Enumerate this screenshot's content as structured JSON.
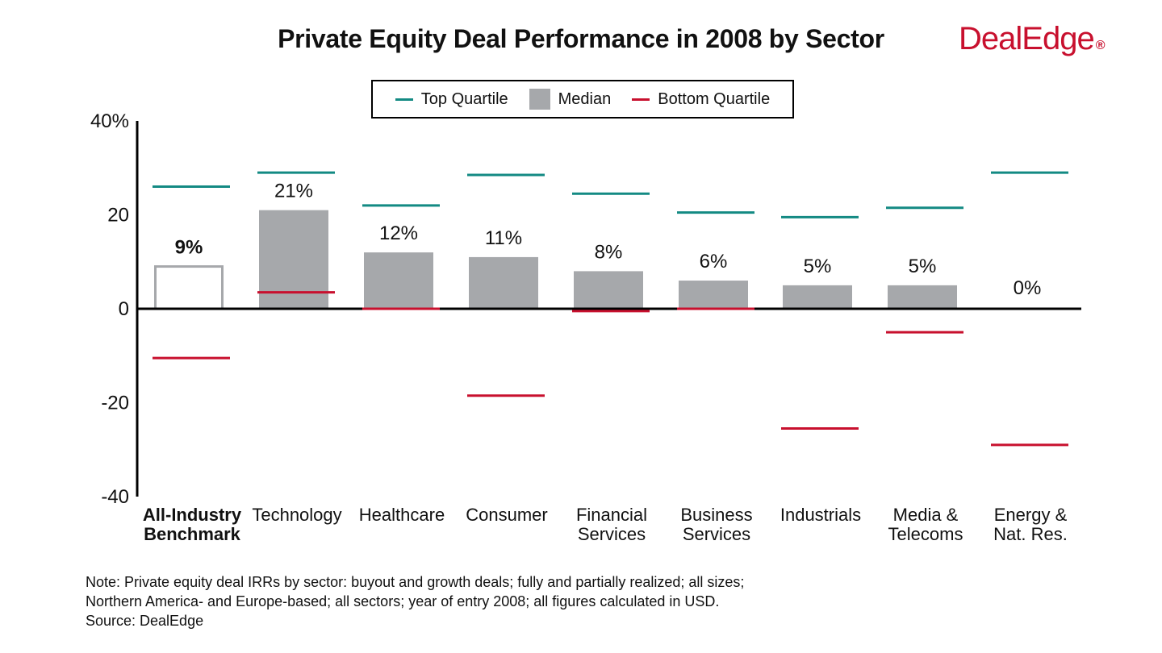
{
  "logo": {
    "text": "DealEdge",
    "mark": "®",
    "color": "#c8102e"
  },
  "colors": {
    "median": "#a6a8ab",
    "top": "#138a83",
    "bottom": "#c8102e",
    "benchmark_outline": "#a6a8ab"
  },
  "legend": {
    "top_label": "Top Quartile",
    "median_label": "Median",
    "bottom_label": "Bottom Quartile"
  },
  "note": {
    "line1": "Note: Private equity deal IRRs by sector: buyout and growth deals; fully and partially realized; all sizes;",
    "line2": "Northern America- and Europe-based; all sectors; year of entry 2008; all figures calculated in USD.",
    "line3": "Source: DealEdge"
  },
  "chart_data": {
    "type": "bar",
    "title": "Private Equity Deal Performance in 2008 by Sector",
    "ylim": [
      -40,
      40
    ],
    "yticks": [
      {
        "value": 40,
        "label": "40%"
      },
      {
        "value": 20,
        "label": "20"
      },
      {
        "value": 0,
        "label": "0"
      },
      {
        "value": -20,
        "label": "-20"
      },
      {
        "value": -40,
        "label": "-40"
      }
    ],
    "categories": [
      [
        "All-Industry",
        "Benchmark"
      ],
      [
        "Technology"
      ],
      [
        "Healthcare"
      ],
      [
        "Consumer"
      ],
      [
        "Financial",
        "Services"
      ],
      [
        "Business",
        "Services"
      ],
      [
        "Industrials"
      ],
      [
        "Media &",
        "Telecoms"
      ],
      [
        "Energy &",
        "Nat. Res."
      ]
    ],
    "highlight_index": 0,
    "series": [
      {
        "name": "Median",
        "values": [
          9,
          21,
          12,
          11,
          8,
          6,
          5,
          5,
          0
        ],
        "labels": [
          "9%",
          "21%",
          "12%",
          "11%",
          "8%",
          "6%",
          "5%",
          "5%",
          "0%"
        ]
      },
      {
        "name": "Top Quartile",
        "values": [
          26,
          29,
          22,
          28.5,
          24.5,
          20.5,
          19.5,
          21.5,
          29
        ]
      },
      {
        "name": "Bottom Quartile",
        "values": [
          -10.5,
          3.5,
          0,
          -18.5,
          -0.5,
          0,
          -25.5,
          -5,
          -29
        ]
      }
    ],
    "grid": false,
    "legend_position": "top-center"
  }
}
